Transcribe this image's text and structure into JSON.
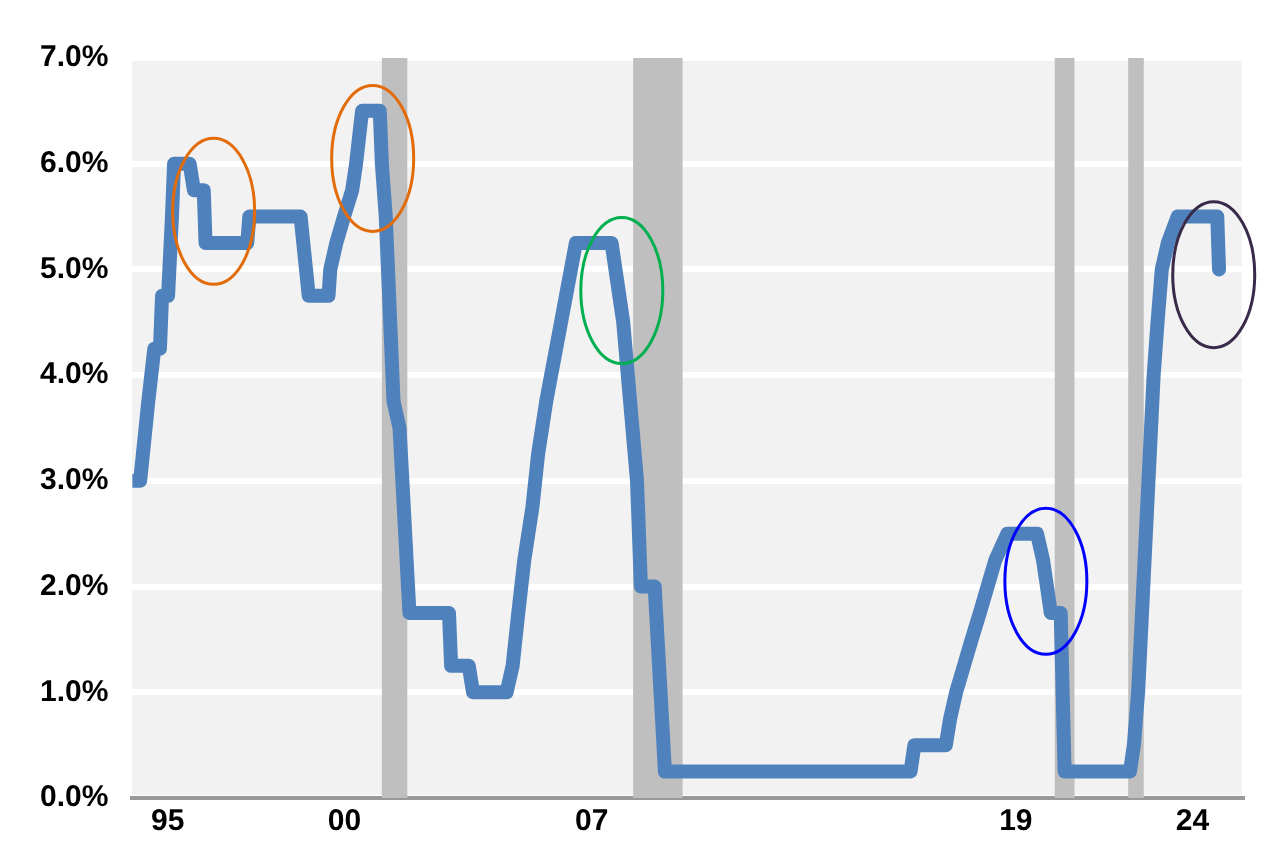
{
  "chart_data": {
    "type": "line",
    "x": [
      1994.0,
      1994.22,
      1994.45,
      1994.62,
      1994.78,
      1994.84,
      1995.01,
      1995.12,
      1995.18,
      1995.62,
      1995.74,
      1996.02,
      1996.07,
      1997.25,
      1997.31,
      1998.76,
      1998.99,
      1999.55,
      1999.6,
      1999.77,
      1999.99,
      2000.22,
      2000.33,
      2000.5,
      2001.0,
      2001.06,
      2001.17,
      2001.39,
      2001.56,
      2001.84,
      2002.96,
      2003.02,
      2003.52,
      2003.64,
      2004.59,
      2004.76,
      2004.92,
      2005.09,
      2005.32,
      2005.48,
      2005.71,
      2005.99,
      2006.27,
      2006.55,
      2007.56,
      2007.78,
      2007.89,
      2008.28,
      2008.39,
      2008.78,
      2009.07,
      2016.02,
      2016.13,
      2017.02,
      2017.14,
      2017.31,
      2017.53,
      2017.75,
      2017.98,
      2018.2,
      2018.42,
      2018.76,
      2019.6,
      2019.77,
      2019.88,
      2019.99,
      2020.27,
      2020.38,
      2022.23,
      2022.34,
      2022.46,
      2022.57,
      2022.68,
      2022.79,
      2022.9,
      2023.01,
      2023.13,
      2023.3,
      2023.58,
      2024.7,
      2024.75
    ],
    "series": [
      {
        "color": "#4f81bd",
        "values": [
          3.0,
          3.0,
          3.75,
          4.25,
          4.25,
          4.75,
          4.75,
          5.5,
          6.0,
          6.0,
          5.75,
          5.75,
          5.25,
          5.25,
          5.5,
          5.5,
          4.75,
          4.75,
          5.0,
          5.25,
          5.5,
          5.75,
          6.0,
          6.5,
          6.5,
          6.0,
          5.5,
          3.75,
          3.5,
          1.75,
          1.75,
          1.25,
          1.25,
          1.0,
          1.0,
          1.25,
          1.75,
          2.25,
          2.75,
          3.25,
          3.75,
          4.25,
          4.75,
          5.25,
          5.25,
          4.75,
          4.5,
          3.0,
          2.0,
          2.0,
          0.25,
          0.25,
          0.5,
          0.5,
          0.75,
          1.0,
          1.25,
          1.5,
          1.75,
          2.0,
          2.25,
          2.5,
          2.5,
          2.25,
          2.0,
          1.75,
          1.75,
          0.25,
          0.25,
          0.5,
          1.0,
          1.75,
          2.5,
          3.25,
          4.0,
          4.5,
          5.0,
          5.25,
          5.5,
          5.5,
          5.0
        ]
      }
    ],
    "xlim": [
      1994,
      2025.4
    ],
    "xticks": [
      {
        "value": 1995,
        "label": "95"
      },
      {
        "value": 2000,
        "label": "00"
      },
      {
        "value": 2007,
        "label": "07"
      },
      {
        "value": 2019,
        "label": "19"
      },
      {
        "value": 2024,
        "label": "24"
      }
    ],
    "ylim": [
      0,
      7
    ],
    "yticks": [
      {
        "value": 0,
        "label": "0.0%"
      },
      {
        "value": 1,
        "label": "1.0%"
      },
      {
        "value": 2,
        "label": "2.0%"
      },
      {
        "value": 3,
        "label": "3.0%"
      },
      {
        "value": 4,
        "label": "4.0%"
      },
      {
        "value": 5,
        "label": "5.0%"
      },
      {
        "value": 6,
        "label": "6.0%"
      },
      {
        "value": 7,
        "label": "7.0%"
      }
    ],
    "bands": [
      {
        "axis": "x",
        "from": 2001.06,
        "to": 2001.78,
        "color": "#bfbfbf"
      },
      {
        "axis": "x",
        "from": 2008.17,
        "to": 2009.57,
        "color": "#bfbfbf"
      },
      {
        "axis": "x",
        "from": 2020.1,
        "to": 2020.66,
        "color": "#bfbfbf"
      },
      {
        "axis": "x",
        "from": 2022.18,
        "to": 2022.62,
        "color": "#bfbfbf"
      }
    ],
    "grid": "y",
    "legend": false,
    "marker": "none",
    "line_style": "solid"
  }
}
